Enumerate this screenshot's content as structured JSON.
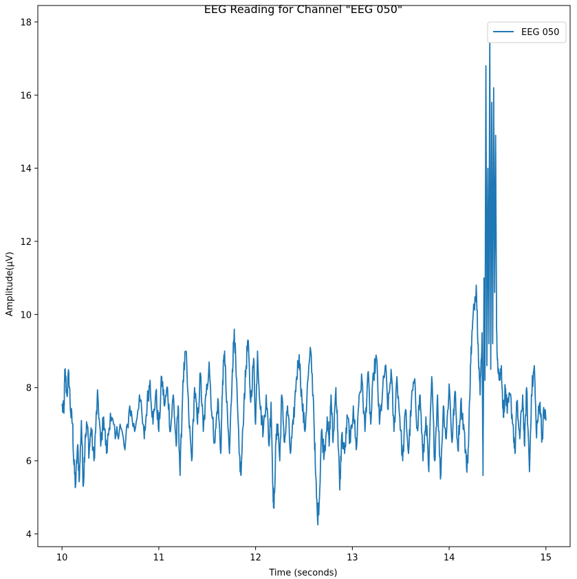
{
  "chart_data": {
    "type": "line",
    "title": "EEG Reading for Channel \"EEG 050\"",
    "xlabel": "Time (seconds)",
    "ylabel": "Amplitude(µV)",
    "xlim": [
      9.75,
      15.25
    ],
    "ylim": [
      3.65,
      18.45
    ],
    "xticks": [
      10,
      11,
      12,
      13,
      14,
      15
    ],
    "yticks": [
      4,
      6,
      8,
      10,
      12,
      14,
      16,
      18
    ],
    "grid": false,
    "legend_position": "top-right",
    "series": [
      {
        "name": "EEG 050",
        "color": "#1f77b4",
        "keypoints": [
          [
            10.0,
            7.5
          ],
          [
            10.02,
            7.3
          ],
          [
            10.03,
            8.5
          ],
          [
            10.05,
            7.8
          ],
          [
            10.07,
            8.4
          ],
          [
            10.09,
            7.3
          ],
          [
            10.11,
            7.0
          ],
          [
            10.12,
            6.0
          ],
          [
            10.14,
            5.3
          ],
          [
            10.16,
            6.4
          ],
          [
            10.18,
            5.5
          ],
          [
            10.2,
            7.1
          ],
          [
            10.22,
            5.3
          ],
          [
            10.24,
            6.7
          ],
          [
            10.26,
            7.0
          ],
          [
            10.28,
            6.2
          ],
          [
            10.3,
            6.9
          ],
          [
            10.33,
            6.0
          ],
          [
            10.35,
            7.0
          ],
          [
            10.37,
            7.8
          ],
          [
            10.4,
            6.4
          ],
          [
            10.43,
            7.2
          ],
          [
            10.46,
            6.2
          ],
          [
            10.5,
            7.3
          ],
          [
            10.55,
            6.6
          ],
          [
            10.6,
            7.0
          ],
          [
            10.65,
            6.3
          ],
          [
            10.7,
            7.5
          ],
          [
            10.75,
            6.8
          ],
          [
            10.8,
            7.8
          ],
          [
            10.85,
            6.6
          ],
          [
            10.88,
            7.6
          ],
          [
            10.91,
            8.2
          ],
          [
            10.94,
            7.0
          ],
          [
            10.97,
            7.9
          ],
          [
            11.0,
            6.8
          ],
          [
            11.03,
            8.3
          ],
          [
            11.06,
            7.5
          ],
          [
            11.09,
            8.0
          ],
          [
            11.12,
            6.8
          ],
          [
            11.15,
            7.8
          ],
          [
            11.18,
            6.4
          ],
          [
            11.2,
            7.5
          ],
          [
            11.22,
            5.6
          ],
          [
            11.25,
            8.2
          ],
          [
            11.28,
            9.0
          ],
          [
            11.31,
            7.2
          ],
          [
            11.34,
            6.0
          ],
          [
            11.37,
            8.0
          ],
          [
            11.4,
            7.0
          ],
          [
            11.43,
            8.4
          ],
          [
            11.46,
            6.8
          ],
          [
            11.49,
            7.8
          ],
          [
            11.52,
            8.7
          ],
          [
            11.55,
            7.2
          ],
          [
            11.58,
            6.5
          ],
          [
            11.61,
            7.7
          ],
          [
            11.64,
            6.2
          ],
          [
            11.66,
            8.2
          ],
          [
            11.68,
            9.0
          ],
          [
            11.7,
            7.6
          ],
          [
            11.73,
            6.2
          ],
          [
            11.76,
            8.5
          ],
          [
            11.78,
            9.6
          ],
          [
            11.8,
            8.3
          ],
          [
            11.83,
            6.2
          ],
          [
            11.85,
            5.6
          ],
          [
            11.88,
            7.6
          ],
          [
            11.9,
            8.5
          ],
          [
            11.92,
            9.3
          ],
          [
            11.95,
            7.6
          ],
          [
            11.98,
            8.8
          ],
          [
            12.0,
            7.0
          ],
          [
            12.02,
            9.0
          ],
          [
            12.05,
            7.4
          ],
          [
            12.08,
            6.8
          ],
          [
            12.11,
            7.8
          ],
          [
            12.14,
            6.4
          ],
          [
            12.16,
            7.6
          ],
          [
            12.18,
            5.2
          ],
          [
            12.19,
            4.7
          ],
          [
            12.21,
            6.5
          ],
          [
            12.23,
            7.0
          ],
          [
            12.25,
            6.0
          ],
          [
            12.27,
            7.8
          ],
          [
            12.3,
            6.5
          ],
          [
            12.33,
            7.5
          ],
          [
            12.36,
            6.2
          ],
          [
            12.39,
            7.0
          ],
          [
            12.42,
            8.2
          ],
          [
            12.45,
            8.9
          ],
          [
            12.48,
            7.6
          ],
          [
            12.51,
            6.8
          ],
          [
            12.54,
            8.2
          ],
          [
            12.57,
            9.0
          ],
          [
            12.6,
            7.5
          ],
          [
            12.62,
            5.6
          ],
          [
            12.64,
            4.4
          ],
          [
            12.66,
            5.0
          ],
          [
            12.68,
            6.8
          ],
          [
            12.71,
            6.2
          ],
          [
            12.74,
            7.2
          ],
          [
            12.76,
            6.4
          ],
          [
            12.78,
            7.8
          ],
          [
            12.8,
            6.5
          ],
          [
            12.83,
            8.0
          ],
          [
            12.85,
            6.8
          ],
          [
            12.87,
            5.2
          ],
          [
            12.89,
            6.7
          ],
          [
            12.92,
            6.2
          ],
          [
            12.95,
            7.2
          ],
          [
            12.98,
            6.5
          ],
          [
            13.01,
            7.5
          ],
          [
            13.04,
            6.3
          ],
          [
            13.07,
            7.8
          ],
          [
            13.1,
            8.2
          ],
          [
            13.13,
            6.8
          ],
          [
            13.16,
            8.4
          ],
          [
            13.19,
            7.0
          ],
          [
            13.22,
            8.4
          ],
          [
            13.25,
            8.8
          ],
          [
            13.28,
            7.0
          ],
          [
            13.31,
            7.8
          ],
          [
            13.34,
            8.6
          ],
          [
            13.37,
            7.4
          ],
          [
            13.4,
            8.5
          ],
          [
            13.43,
            6.8
          ],
          [
            13.46,
            8.3
          ],
          [
            13.49,
            7.2
          ],
          [
            13.52,
            6.0
          ],
          [
            13.55,
            7.4
          ],
          [
            13.58,
            6.2
          ],
          [
            13.61,
            7.6
          ],
          [
            13.64,
            8.2
          ],
          [
            13.67,
            6.9
          ],
          [
            13.7,
            7.8
          ],
          [
            13.73,
            6.0
          ],
          [
            13.76,
            7.2
          ],
          [
            13.79,
            5.7
          ],
          [
            13.82,
            8.3
          ],
          [
            13.85,
            6.0
          ],
          [
            13.88,
            7.8
          ],
          [
            13.91,
            5.5
          ],
          [
            13.94,
            7.5
          ],
          [
            13.97,
            6.6
          ],
          [
            14.0,
            8.1
          ],
          [
            14.03,
            6.5
          ],
          [
            14.06,
            7.9
          ],
          [
            14.09,
            6.3
          ],
          [
            14.12,
            7.6
          ],
          [
            14.15,
            7.0
          ],
          [
            14.18,
            5.8
          ],
          [
            14.2,
            6.4
          ],
          [
            14.22,
            8.6
          ],
          [
            14.24,
            9.6
          ],
          [
            14.26,
            10.3
          ],
          [
            14.28,
            10.8
          ],
          [
            14.3,
            9.2
          ],
          [
            14.32,
            7.8
          ],
          [
            14.34,
            9.5
          ],
          [
            14.35,
            5.6
          ],
          [
            14.36,
            11.0
          ],
          [
            14.37,
            8.2
          ],
          [
            14.38,
            16.8
          ],
          [
            14.39,
            8.6
          ],
          [
            14.4,
            14.0
          ],
          [
            14.41,
            9.2
          ],
          [
            14.42,
            17.7
          ],
          [
            14.43,
            8.5
          ],
          [
            14.44,
            15.8
          ],
          [
            14.45,
            9.2
          ],
          [
            14.46,
            16.2
          ],
          [
            14.47,
            10.6
          ],
          [
            14.48,
            14.9
          ],
          [
            14.49,
            9.6
          ],
          [
            14.5,
            8.8
          ],
          [
            14.52,
            8.2
          ],
          [
            14.54,
            8.6
          ],
          [
            14.56,
            7.2
          ],
          [
            14.58,
            8.0
          ],
          [
            14.6,
            7.3
          ],
          [
            14.63,
            7.8
          ],
          [
            14.66,
            7.0
          ],
          [
            14.68,
            6.2
          ],
          [
            14.7,
            7.6
          ],
          [
            14.73,
            6.6
          ],
          [
            14.76,
            7.8
          ],
          [
            14.78,
            6.4
          ],
          [
            14.8,
            8.0
          ],
          [
            14.83,
            5.7
          ],
          [
            14.85,
            7.8
          ],
          [
            14.88,
            8.6
          ],
          [
            14.9,
            6.8
          ],
          [
            14.92,
            7.2
          ],
          [
            14.94,
            7.6
          ],
          [
            14.96,
            6.6
          ],
          [
            14.98,
            7.4
          ],
          [
            15.0,
            7.1
          ]
        ]
      }
    ]
  }
}
